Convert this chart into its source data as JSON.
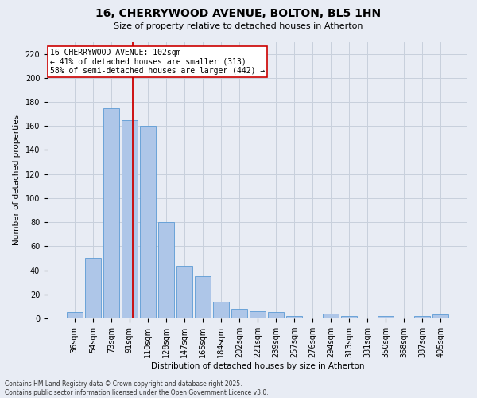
{
  "title_line1": "16, CHERRYWOOD AVENUE, BOLTON, BL5 1HN",
  "title_line2": "Size of property relative to detached houses in Atherton",
  "xlabel": "Distribution of detached houses by size in Atherton",
  "ylabel": "Number of detached properties",
  "categories": [
    "36sqm",
    "54sqm",
    "73sqm",
    "91sqm",
    "110sqm",
    "128sqm",
    "147sqm",
    "165sqm",
    "184sqm",
    "202sqm",
    "221sqm",
    "239sqm",
    "257sqm",
    "276sqm",
    "294sqm",
    "313sqm",
    "331sqm",
    "350sqm",
    "368sqm",
    "387sqm",
    "405sqm"
  ],
  "values": [
    5,
    50,
    175,
    165,
    160,
    80,
    44,
    35,
    14,
    8,
    6,
    5,
    2,
    0,
    4,
    2,
    0,
    2,
    0,
    2,
    3
  ],
  "bar_color": "#aec6e8",
  "bar_edge_color": "#5b9bd5",
  "grid_color": "#c8d0dc",
  "background_color": "#e8ecf4",
  "vline_color": "#cc0000",
  "annotation_text": "16 CHERRYWOOD AVENUE: 102sqm\n← 41% of detached houses are smaller (313)\n58% of semi-detached houses are larger (442) →",
  "annotation_box_facecolor": "#ffffff",
  "annotation_box_edgecolor": "#cc0000",
  "ylim": [
    0,
    230
  ],
  "yticks": [
    0,
    20,
    40,
    60,
    80,
    100,
    120,
    140,
    160,
    180,
    200,
    220
  ],
  "footer_line1": "Contains HM Land Registry data © Crown copyright and database right 2025.",
  "footer_line2": "Contains public sector information licensed under the Open Government Licence v3.0.",
  "title_fontsize": 10,
  "subtitle_fontsize": 8,
  "axis_label_fontsize": 7.5,
  "tick_fontsize": 7,
  "footer_fontsize": 5.5,
  "annotation_fontsize": 7,
  "vline_x_data": 3.18
}
